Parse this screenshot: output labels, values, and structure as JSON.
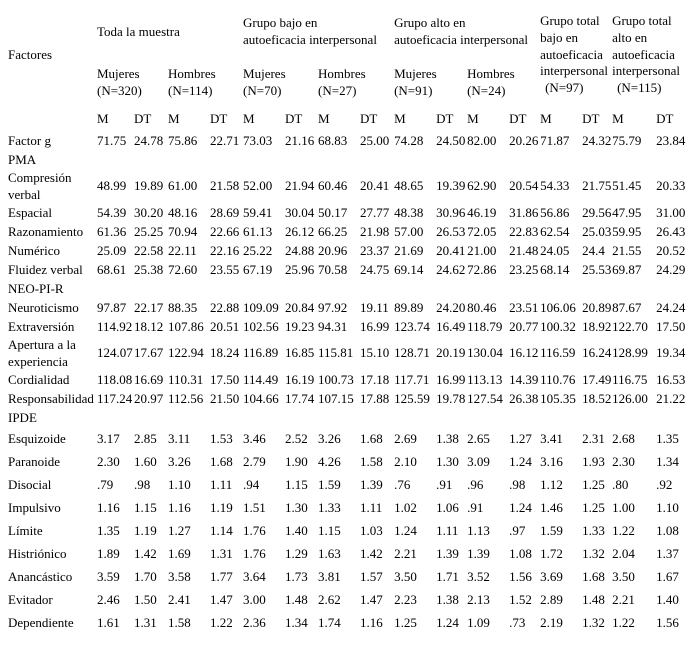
{
  "colors": {
    "text": "#000000",
    "background": "#ffffff"
  },
  "table": {
    "row_label_header": "Factores",
    "stat_headers": [
      "M",
      "DT"
    ],
    "col_groups": [
      {
        "lines": [
          "Toda la muestra"
        ],
        "span": 4,
        "tall": false
      },
      {
        "lines": [
          "Grupo bajo en",
          "autoeficacia interpersonal"
        ],
        "span": 4,
        "tall": false
      },
      {
        "lines": [
          "Grupo alto en",
          "autoeficacia interpersonal"
        ],
        "span": 4,
        "tall": false
      },
      {
        "lines": [
          "Grupo total",
          "bajo en",
          "autoeficacia",
          "interpersonal"
        ],
        "n": "(N=97)",
        "span": 2,
        "tall": true
      },
      {
        "lines": [
          "Grupo total",
          "alto en",
          "autoeficacia",
          "interpersonal"
        ],
        "n": "(N=115)",
        "span": 2,
        "tall": true
      }
    ],
    "subgroups": [
      {
        "label": "Mujeres",
        "n": "(N=320)"
      },
      {
        "label": "Hombres",
        "n": "(N=114)"
      },
      {
        "label": "Mujeres",
        "n": "(N=70)"
      },
      {
        "label": "Hombres",
        "n": "(N=27)"
      },
      {
        "label": "Mujeres",
        "n": "(N=91)"
      },
      {
        "label": "Hombres",
        "n": "(N=24)"
      }
    ],
    "rows": [
      {
        "label": "Factor g",
        "type": "data",
        "values": [
          "71.75",
          "24.78",
          "75.86",
          "22.71",
          "73.03",
          "21.16",
          "68.83",
          "25.00",
          "74.28",
          "24.50",
          "82.00",
          "20.26",
          "71.87",
          "24.32",
          "75.79",
          "23.84"
        ]
      },
      {
        "label": "PMA",
        "type": "section"
      },
      {
        "label": "Compresión verbal",
        "type": "data",
        "values": [
          "48.99",
          "19.89",
          "61.00",
          "21.58",
          "52.00",
          "21.94",
          "60.46",
          "20.41",
          "48.65",
          "19.39",
          "62.90",
          "20.54",
          "54.33",
          "21.75",
          "51.45",
          "20.33"
        ]
      },
      {
        "label": "Espacial",
        "type": "data",
        "values": [
          "54.39",
          "30.20",
          "48.16",
          "28.69",
          "59.41",
          "30.04",
          "50.17",
          "27.77",
          "48.38",
          "30.96",
          "46.19",
          "31.86",
          "56.86",
          "29.56",
          "47.95",
          "31.00"
        ]
      },
      {
        "label": "Razonamiento",
        "type": "data",
        "values": [
          "61.36",
          "25.25",
          "70.94",
          "22.66",
          "61.13",
          "26.12",
          "66.25",
          "21.98",
          "57.00",
          "26.53",
          "72.05",
          "22.83",
          "62.54",
          "25.03",
          "59.95",
          "26.43"
        ]
      },
      {
        "label": "Numérico",
        "type": "data",
        "values": [
          "25.09",
          "22.58",
          "22.11",
          "22.16",
          "25.22",
          "24.88",
          "20.96",
          "23.37",
          "21.69",
          "20.41",
          "21.00",
          "21.48",
          "24.05",
          "24.4",
          "21.55",
          "20.52"
        ]
      },
      {
        "label": "Fluidez verbal",
        "type": "data",
        "values": [
          "68.61",
          "25.38",
          "72.60",
          "23.55",
          "67.19",
          "25.96",
          "70.58",
          "24.75",
          "69.14",
          "24.62",
          "72.86",
          "23.25",
          "68.14",
          "25.53",
          "69.87",
          "24.29"
        ]
      },
      {
        "label": "NEO-PI-R",
        "type": "section"
      },
      {
        "label": "Neuroticismo",
        "type": "data",
        "values": [
          "97.87",
          "22.17",
          "88.35",
          "22.88",
          "109.09",
          "20.84",
          "97.92",
          "19.11",
          "89.89",
          "24.20",
          "80.46",
          "23.51",
          "106.06",
          "20.89",
          "87.67",
          "24.24"
        ]
      },
      {
        "label": "Extraversión",
        "type": "data",
        "values": [
          "114.92",
          "18.12",
          "107.86",
          "20.51",
          "102.56",
          "19.23",
          "94.31",
          "16.99",
          "123.74",
          "16.49",
          "118.79",
          "20.77",
          "100.32",
          "18.92",
          "122.70",
          "17.50"
        ]
      },
      {
        "label": "Apertura a la experiencia",
        "type": "data",
        "values": [
          "124.07",
          "17.67",
          "122.94",
          "18.24",
          "116.89",
          "16.85",
          "115.81",
          "15.10",
          "128.71",
          "20.19",
          "130.04",
          "16.12",
          "116.59",
          "16.24",
          "128.99",
          "19.34"
        ]
      },
      {
        "label": "Cordialidad",
        "type": "data",
        "values": [
          "118.08",
          "16.69",
          "110.31",
          "17.50",
          "114.49",
          "16.19",
          "100.73",
          "17.18",
          "117.71",
          "16.99",
          "113.13",
          "14.39",
          "110.76",
          "17.49",
          "116.75",
          "16.53"
        ]
      },
      {
        "label": "Responsabilidad",
        "type": "data",
        "values": [
          "117.24",
          "20.97",
          "112.56",
          "21.50",
          "104.66",
          "17.74",
          "107.15",
          "17.88",
          "125.59",
          "19.78",
          "127.54",
          "26.38",
          "105.35",
          "18.52",
          "126.00",
          "21.22"
        ]
      },
      {
        "label": "IPDE",
        "type": "section"
      },
      {
        "label": "Esquizoide",
        "type": "data",
        "values": [
          "3.17",
          "2.85",
          "3.11",
          "1.53",
          "3.46",
          "2.52",
          "3.26",
          "1.68",
          "2.69",
          "1.38",
          "2.65",
          "1.27",
          "3.41",
          "2.31",
          "2.68",
          "1.35"
        ]
      },
      {
        "label": "Paranoide",
        "type": "data",
        "values": [
          "2.30",
          "1.60",
          "3.26",
          "1.68",
          "2.79",
          "1.90",
          "4.26",
          "1.58",
          "2.10",
          "1.30",
          "3.09",
          "1.24",
          "3.16",
          "1.93",
          "2.30",
          "1.34"
        ]
      },
      {
        "label": "Disocial",
        "type": "data",
        "values": [
          ".79",
          ".98",
          "1.10",
          "1.11",
          ".94",
          "1.15",
          "1.59",
          "1.39",
          ".76",
          ".91",
          ".96",
          ".98",
          "1.12",
          "1.25",
          ".80",
          ".92"
        ]
      },
      {
        "label": "Impulsivo",
        "type": "data",
        "values": [
          "1.16",
          "1.15",
          "1.16",
          "1.19",
          "1.51",
          "1.30",
          "1.33",
          "1.11",
          "1.02",
          "1.06",
          ".91",
          "1.24",
          "1.46",
          "1.25",
          "1.00",
          "1.10"
        ]
      },
      {
        "label": "Límite",
        "type": "data",
        "values": [
          "1.35",
          "1.19",
          "1.27",
          "1.14",
          "1.76",
          "1.40",
          "1.15",
          "1.03",
          "1.24",
          "1.11",
          "1.13",
          ".97",
          "1.59",
          "1.33",
          "1.22",
          "1.08"
        ]
      },
      {
        "label": "Histriónico",
        "type": "data",
        "values": [
          "1.89",
          "1.42",
          "1.69",
          "1.31",
          "1.76",
          "1.29",
          "1.63",
          "1.42",
          "2.21",
          "1.39",
          "1.39",
          "1.08",
          "1.72",
          "1.32",
          "2.04",
          "1.37"
        ]
      },
      {
        "label": "Anancástico",
        "type": "data",
        "values": [
          "3.59",
          "1.70",
          "3.58",
          "1.77",
          "3.64",
          "1.73",
          "3.81",
          "1.57",
          "3.50",
          "1.71",
          "3.52",
          "1.56",
          "3.69",
          "1.68",
          "3.50",
          "1.67"
        ]
      },
      {
        "label": "Evitador",
        "type": "data",
        "values": [
          "2.46",
          "1.50",
          "2.41",
          "1.47",
          "3.00",
          "1.48",
          "2.62",
          "1.47",
          "2.23",
          "1.38",
          "2.13",
          "1.52",
          "2.89",
          "1.48",
          "2.21",
          "1.40"
        ]
      },
      {
        "label": "Dependiente",
        "type": "data",
        "values": [
          "1.61",
          "1.31",
          "1.58",
          "1.22",
          "2.36",
          "1.34",
          "1.74",
          "1.16",
          "1.25",
          "1.24",
          "1.09",
          ".73",
          "2.19",
          "1.32",
          "1.22",
          "1.56"
        ]
      }
    ]
  }
}
